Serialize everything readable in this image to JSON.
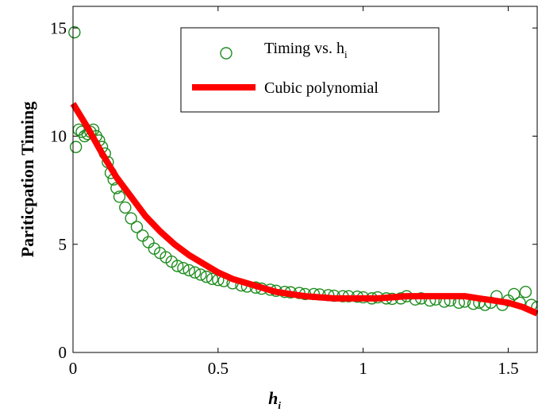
{
  "chart_data": {
    "type": "scatter",
    "title": "",
    "xlabel": "h",
    "xlabel_subscript": "i",
    "ylabel": "Pariticpation Timing",
    "xlim": [
      0,
      1.6
    ],
    "ylim": [
      0,
      16
    ],
    "x_ticks": [
      0,
      0.5,
      1,
      1.5
    ],
    "x_tick_labels": [
      "0",
      "0.5",
      "1",
      "1.5"
    ],
    "y_ticks": [
      0,
      5,
      10,
      15
    ],
    "y_tick_labels": [
      "0",
      "5",
      "10",
      "15"
    ],
    "grid": false,
    "legend_placement": "top-center",
    "colors": {
      "scatter": "#1f8c1f",
      "fit": "#ff0000"
    },
    "series": [
      {
        "name": "Timing vs. h",
        "name_subscript": "i",
        "type": "scatter",
        "marker": "open-circle",
        "x": [
          0.005,
          0.01,
          0.02,
          0.03,
          0.04,
          0.05,
          0.06,
          0.07,
          0.08,
          0.09,
          0.1,
          0.11,
          0.12,
          0.13,
          0.14,
          0.15,
          0.16,
          0.18,
          0.2,
          0.22,
          0.24,
          0.26,
          0.28,
          0.3,
          0.32,
          0.34,
          0.36,
          0.38,
          0.4,
          0.42,
          0.44,
          0.46,
          0.48,
          0.5,
          0.52,
          0.55,
          0.58,
          0.6,
          0.63,
          0.65,
          0.68,
          0.7,
          0.73,
          0.75,
          0.78,
          0.8,
          0.83,
          0.85,
          0.88,
          0.9,
          0.93,
          0.95,
          0.98,
          1.0,
          1.03,
          1.05,
          1.08,
          1.1,
          1.13,
          1.15,
          1.18,
          1.2,
          1.23,
          1.25,
          1.28,
          1.3,
          1.33,
          1.35,
          1.38,
          1.4,
          1.42,
          1.44,
          1.46,
          1.48,
          1.5,
          1.52,
          1.54,
          1.56,
          1.58,
          1.6
        ],
        "y": [
          14.8,
          9.5,
          10.3,
          10.2,
          10.0,
          10.1,
          10.2,
          10.3,
          10.0,
          9.8,
          9.5,
          9.2,
          8.8,
          8.3,
          8.0,
          7.6,
          7.2,
          6.7,
          6.2,
          5.8,
          5.4,
          5.1,
          4.8,
          4.6,
          4.4,
          4.2,
          4.0,
          3.9,
          3.8,
          3.7,
          3.6,
          3.5,
          3.4,
          3.35,
          3.3,
          3.2,
          3.1,
          3.05,
          3.0,
          2.95,
          2.9,
          2.85,
          2.8,
          2.78,
          2.75,
          2.7,
          2.7,
          2.68,
          2.65,
          2.62,
          2.6,
          2.6,
          2.58,
          2.55,
          2.5,
          2.55,
          2.5,
          2.48,
          2.5,
          2.6,
          2.45,
          2.5,
          2.4,
          2.45,
          2.35,
          2.4,
          2.3,
          2.35,
          2.25,
          2.3,
          2.2,
          2.3,
          2.6,
          2.2,
          2.4,
          2.7,
          2.3,
          2.8,
          2.2,
          2.1
        ]
      },
      {
        "name": "Cubic polynomial",
        "type": "line",
        "x": [
          0,
          0.05,
          0.1,
          0.15,
          0.2,
          0.25,
          0.3,
          0.35,
          0.4,
          0.45,
          0.5,
          0.55,
          0.6,
          0.65,
          0.7,
          0.75,
          0.8,
          0.85,
          0.9,
          0.95,
          1.0,
          1.05,
          1.1,
          1.15,
          1.2,
          1.25,
          1.3,
          1.35,
          1.4,
          1.45,
          1.5,
          1.55,
          1.6
        ],
        "y": [
          11.5,
          10.4,
          9.2,
          8.1,
          7.2,
          6.3,
          5.6,
          5.0,
          4.5,
          4.1,
          3.7,
          3.4,
          3.2,
          3.0,
          2.8,
          2.7,
          2.6,
          2.55,
          2.5,
          2.5,
          2.5,
          2.5,
          2.55,
          2.6,
          2.6,
          2.6,
          2.6,
          2.6,
          2.5,
          2.4,
          2.3,
          2.1,
          1.8
        ]
      }
    ]
  }
}
